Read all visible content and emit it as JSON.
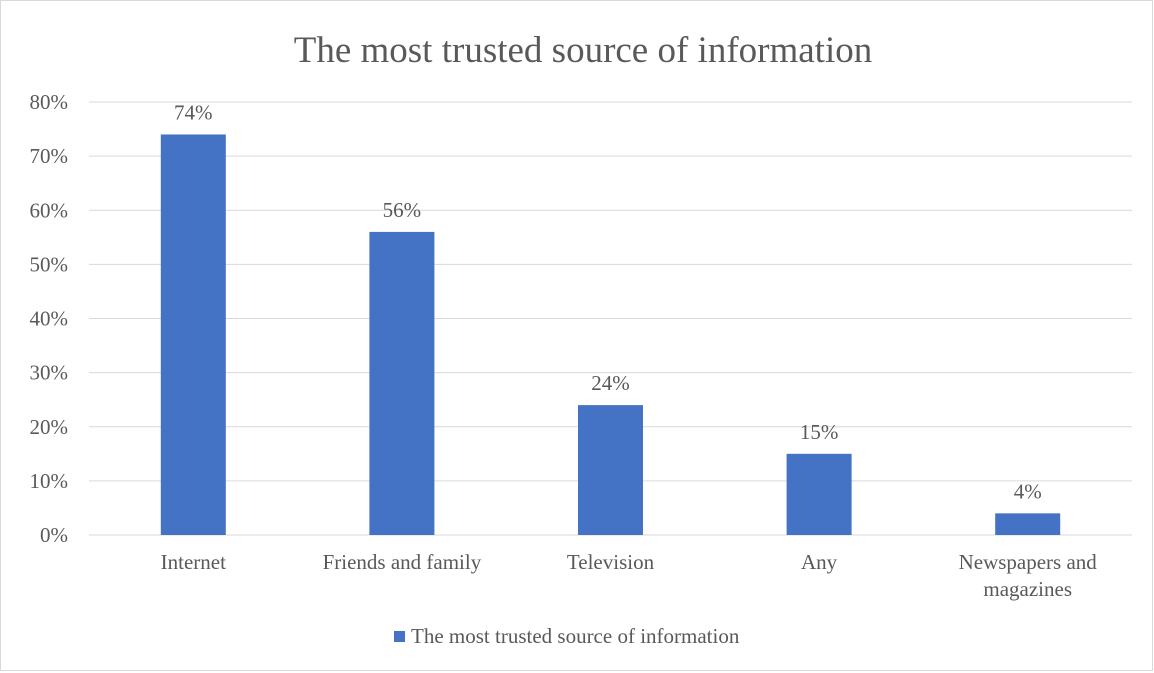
{
  "chart_data": {
    "type": "bar",
    "title": "The most trusted source of information",
    "categories": [
      "Internet",
      "Friends and family",
      "Television",
      "Any",
      "Newspapers and magazines"
    ],
    "category_lines": [
      [
        "Internet"
      ],
      [
        "Friends and family"
      ],
      [
        "Television"
      ],
      [
        "Any"
      ],
      [
        "Newspapers and",
        "magazines"
      ]
    ],
    "series": [
      {
        "name": "The most trusted source of information",
        "values": [
          74,
          56,
          24,
          15,
          4
        ],
        "color": "#4472c4"
      }
    ],
    "data_labels": [
      "74%",
      "56%",
      "24%",
      "15%",
      "4%"
    ],
    "y_ticks": [
      0,
      10,
      20,
      30,
      40,
      50,
      60,
      70,
      80
    ],
    "y_tick_labels": [
      "0%",
      "10%",
      "20%",
      "30%",
      "40%",
      "50%",
      "60%",
      "70%",
      "80%"
    ],
    "ylim": [
      0,
      80
    ],
    "grid": true,
    "legend_position": "bottom",
    "colors": {
      "bar": "#4472c4",
      "grid": "#d9d9d9",
      "text": "#595959"
    }
  }
}
